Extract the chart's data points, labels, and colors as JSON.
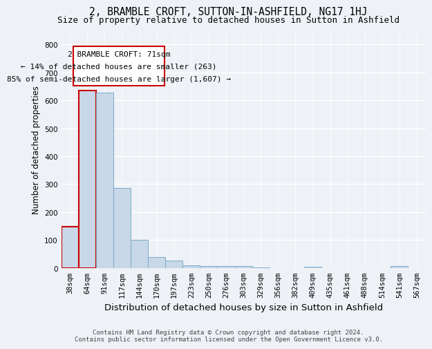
{
  "title": "2, BRAMBLE CROFT, SUTTON-IN-ASHFIELD, NG17 1HJ",
  "subtitle": "Size of property relative to detached houses in Sutton in Ashfield",
  "xlabel": "Distribution of detached houses by size in Sutton in Ashfield",
  "ylabel": "Number of detached properties",
  "footnote1": "Contains HM Land Registry data © Crown copyright and database right 2024.",
  "footnote2": "Contains public sector information licensed under the Open Government Licence v3.0.",
  "categories": [
    "38sqm",
    "64sqm",
    "91sqm",
    "117sqm",
    "144sqm",
    "170sqm",
    "197sqm",
    "223sqm",
    "250sqm",
    "276sqm",
    "303sqm",
    "329sqm",
    "356sqm",
    "382sqm",
    "409sqm",
    "435sqm",
    "461sqm",
    "488sqm",
    "514sqm",
    "541sqm",
    "567sqm"
  ],
  "values": [
    148,
    634,
    627,
    287,
    100,
    40,
    26,
    10,
    7,
    7,
    7,
    2,
    0,
    0,
    5,
    0,
    0,
    0,
    0,
    7,
    0
  ],
  "bar_color": "#c8d8e8",
  "bar_edge_color": "#7aa8c8",
  "highlight_indices": [
    0,
    1
  ],
  "highlight_edge_color": "#cc0000",
  "annotation_line1": "2 BRAMBLE CROFT: 71sqm",
  "annotation_line2": "← 14% of detached houses are smaller (263)",
  "annotation_line3": "85% of semi-detached houses are larger (1,607) →",
  "annotation_fontsize": 8.0,
  "ylim": [
    0,
    850
  ],
  "yticks": [
    0,
    100,
    200,
    300,
    400,
    500,
    600,
    700,
    800
  ],
  "bg_color": "#eef2f7",
  "grid_color": "#ffffff",
  "title_fontsize": 10.5,
  "subtitle_fontsize": 9.0,
  "xlabel_fontsize": 9.5,
  "ylabel_fontsize": 8.5,
  "tick_fontsize": 7.5,
  "footnote_fontsize": 6.5
}
